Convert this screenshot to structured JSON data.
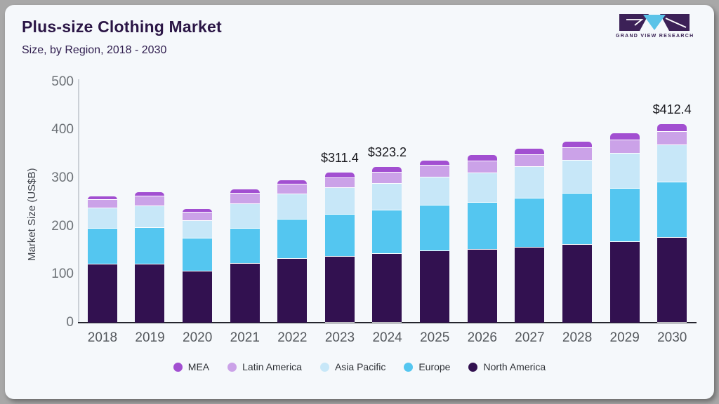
{
  "header": {
    "title": "Plus-size Clothing Market",
    "subtitle": "Size, by Region, 2018 - 2030",
    "logo_text": "GRAND VIEW RESEARCH"
  },
  "chart_data": {
    "type": "bar",
    "stacked": true,
    "title": "Plus-size Clothing Market Size, by Region, 2018 - 2030",
    "xlabel": "",
    "ylabel": "Market Size (US$B)",
    "ylim": [
      0,
      500
    ],
    "yticks": [
      0,
      100,
      200,
      300,
      400,
      500
    ],
    "grid": false,
    "legend_position": "bottom",
    "categories": [
      2018,
      2019,
      2020,
      2021,
      2022,
      2023,
      2024,
      2025,
      2026,
      2027,
      2028,
      2029,
      2030
    ],
    "series": [
      {
        "name": "North America",
        "color": "#321150",
        "values": [
          120.5,
          121.5,
          107.0,
          122.5,
          132.4,
          136.9,
          142.3,
          148.5,
          150.8,
          155.5,
          161.5,
          167.0,
          176.3
        ]
      },
      {
        "name": "Europe",
        "color": "#54c6f0",
        "values": [
          74.0,
          75.5,
          68.2,
          73.0,
          81.8,
          87.3,
          90.2,
          93.9,
          98.4,
          102.0,
          106.5,
          111.5,
          115.0
        ]
      },
      {
        "name": "Asia Pacific",
        "color": "#c7e7f8",
        "values": [
          43.0,
          45.0,
          35.5,
          50.0,
          52.0,
          54.8,
          56.0,
          59.4,
          61.5,
          65.0,
          68.0,
          73.0,
          77.4
        ]
      },
      {
        "name": "Latin America",
        "color": "#cba2e8",
        "values": [
          18.0,
          20.0,
          18.1,
          22.0,
          20.0,
          20.8,
          23.2,
          23.7,
          24.3,
          25.5,
          26.5,
          26.5,
          27.0
        ]
      },
      {
        "name": "MEA",
        "color": "#a24fd1",
        "values": [
          7.3,
          8.1,
          7.3,
          8.4,
          9.7,
          11.6,
          11.5,
          11.3,
          13.5,
          13.0,
          13.5,
          15.5,
          16.7
        ]
      }
    ],
    "totals": [
      262.8,
      270.1,
      236.1,
      275.9,
      295.9,
      311.4,
      323.2,
      336.8,
      348.5,
      361.0,
      376.0,
      393.5,
      412.4
    ],
    "bar_labels": {
      "2023": "$311.4",
      "2024": "$323.2",
      "2030": "$412.4"
    },
    "legend": [
      {
        "label": "MEA",
        "color": "#a24fd1"
      },
      {
        "label": "Latin America",
        "color": "#cba2e8"
      },
      {
        "label": "Asia Pacific",
        "color": "#c7e7f8"
      },
      {
        "label": "Europe",
        "color": "#54c6f0"
      },
      {
        "label": "North America",
        "color": "#321150"
      }
    ]
  },
  "colors": {
    "card_background": "#f5f8fb",
    "frame": "#a8a8a8",
    "title_text": "#2b1646",
    "axis_line_dark": "#25252e",
    "axis_line_light": "#cbd0d6",
    "tick_text": "#6d7277",
    "logo_purple": "#3c2157",
    "logo_cyan": "#5bc3e8"
  }
}
